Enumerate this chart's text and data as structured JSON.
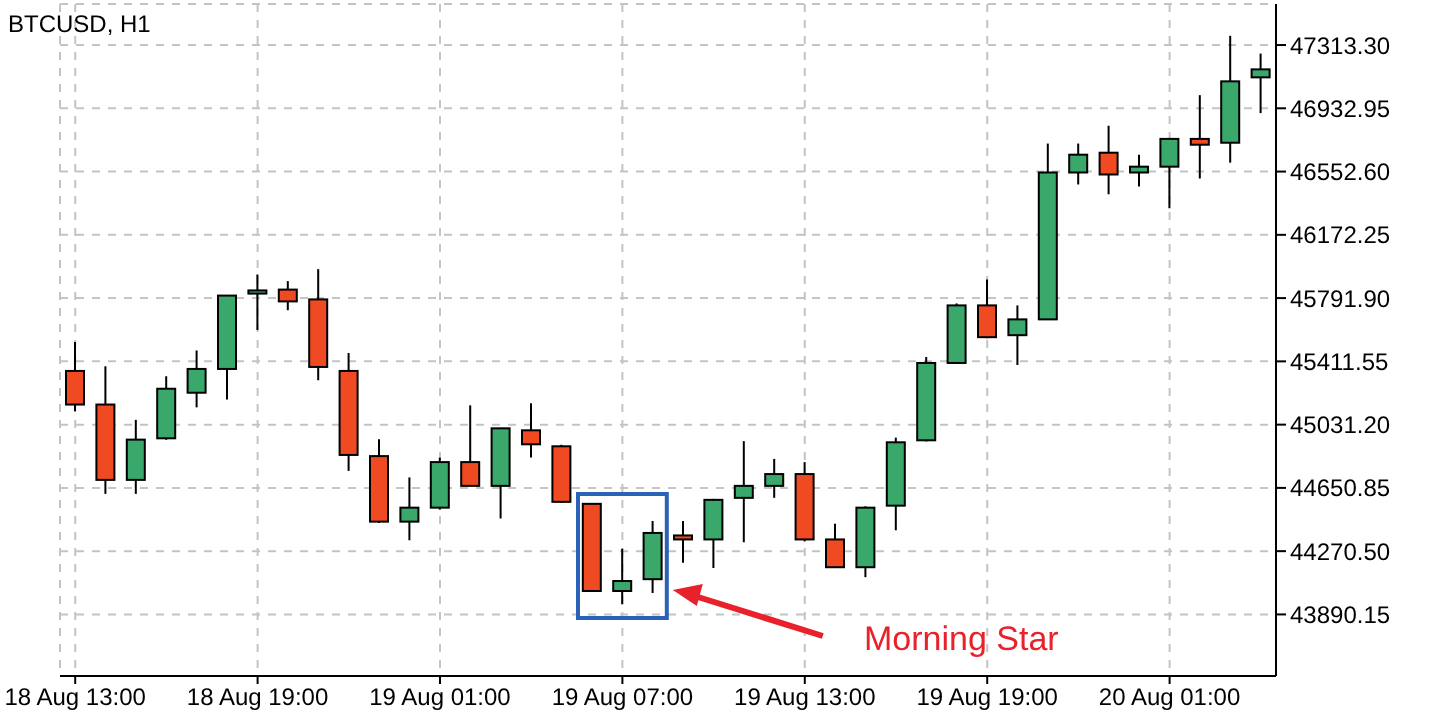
{
  "chart_data": {
    "type": "candlestick",
    "title": "BTCUSD, H1",
    "categories": [
      "18 Aug 13:00",
      null,
      null,
      null,
      null,
      null,
      "18 Aug 19:00",
      null,
      null,
      null,
      null,
      null,
      "19 Aug 01:00",
      null,
      null,
      null,
      null,
      null,
      "19 Aug 07:00",
      null,
      null,
      null,
      null,
      null,
      "19 Aug 13:00",
      null,
      null,
      null,
      null,
      null,
      "19 Aug 19:00",
      null,
      null,
      null,
      null,
      null,
      "20 Aug 01:00",
      null,
      null,
      null
    ],
    "ohlc": [
      [
        45354,
        45528,
        45111,
        45152
      ],
      [
        45152,
        45382,
        44615,
        44699
      ],
      [
        44699,
        45060,
        44615,
        44941
      ],
      [
        44949,
        45322,
        44940,
        45247
      ],
      [
        45223,
        45477,
        45135,
        45366
      ],
      [
        45366,
        45810,
        45183,
        45807
      ],
      [
        45819,
        45934,
        45600,
        45838
      ],
      [
        45843,
        45894,
        45719,
        45772
      ],
      [
        45784,
        45966,
        45298,
        45378
      ],
      [
        45354,
        45462,
        44753,
        44849
      ],
      [
        44842,
        44944,
        44440,
        44448
      ],
      [
        44448,
        44714,
        44336,
        44532
      ],
      [
        44532,
        44833,
        44520,
        44806
      ],
      [
        44806,
        45147,
        44660,
        44663
      ],
      [
        44663,
        45010,
        44467,
        45009
      ],
      [
        44997,
        45159,
        44833,
        44913
      ],
      [
        44901,
        44910,
        44560,
        44567
      ],
      [
        44555,
        44560,
        44025,
        44031
      ],
      [
        44031,
        44285,
        43951,
        44091
      ],
      [
        44102,
        44452,
        44019,
        44380
      ],
      [
        44365,
        44452,
        44201,
        44341
      ],
      [
        44341,
        44585,
        44169,
        44579
      ],
      [
        44591,
        44932,
        44324,
        44663
      ],
      [
        44663,
        44825,
        44591,
        44734
      ],
      [
        44734,
        44806,
        44329,
        44341
      ],
      [
        44341,
        44436,
        44170,
        44174
      ],
      [
        44174,
        44540,
        44114,
        44532
      ],
      [
        44544,
        44953,
        44396,
        44925
      ],
      [
        44937,
        45438,
        44930,
        45402
      ],
      [
        45402,
        45760,
        45400,
        45748
      ],
      [
        45748,
        45903,
        45550,
        45557
      ],
      [
        45569,
        45748,
        45390,
        45664
      ],
      [
        45664,
        46721,
        45660,
        46547
      ],
      [
        46547,
        46721,
        46475,
        46654
      ],
      [
        46666,
        46828,
        46416,
        46535
      ],
      [
        46547,
        46654,
        46463,
        46582
      ],
      [
        46582,
        46755,
        46332,
        46749
      ],
      [
        46749,
        47012,
        46511,
        46714
      ],
      [
        46726,
        47369,
        46606,
        47095
      ],
      [
        47119,
        47262,
        46904,
        47167
      ]
    ],
    "colors": [
      "#f04a23",
      "#f04a23",
      "#3aa86b",
      "#3aa86b",
      "#3aa86b",
      "#3aa86b",
      "#3aa86b",
      "#f04a23",
      "#f04a23",
      "#f04a23",
      "#f04a23",
      "#3aa86b",
      "#3aa86b",
      "#f04a23",
      "#3aa86b",
      "#f04a23",
      "#f04a23",
      "#f04a23",
      "#3aa86b",
      "#3aa86b",
      "#f04a23",
      "#3aa86b",
      "#3aa86b",
      "#3aa86b",
      "#f04a23",
      "#f04a23",
      "#3aa86b",
      "#3aa86b",
      "#3aa86b",
      "#3aa86b",
      "#f04a23",
      "#3aa86b",
      "#3aa86b",
      "#3aa86b",
      "#f04a23",
      "#3aa86b",
      "#3aa86b",
      "#f04a23",
      "#3aa86b",
      "#3aa86b"
    ],
    "ylim": [
      43520,
      47560
    ],
    "yticks": [
      {
        "value": 43890.15,
        "label": "43890.15"
      },
      {
        "value": 44270.5,
        "label": "44270.50"
      },
      {
        "value": 44650.85,
        "label": "44650.85"
      },
      {
        "value": 45031.2,
        "label": "45031.20"
      },
      {
        "value": 45411.55,
        "label": "45411.55"
      },
      {
        "value": 45791.9,
        "label": "45791.90"
      },
      {
        "value": 46172.25,
        "label": "46172.25"
      },
      {
        "value": 46552.6,
        "label": "46552.60"
      },
      {
        "value": 46932.95,
        "label": "46932.95"
      },
      {
        "value": 47313.3,
        "label": "47313.30"
      }
    ],
    "grid": true,
    "legend": false,
    "annotations": [
      "Morning Star"
    ]
  }
}
